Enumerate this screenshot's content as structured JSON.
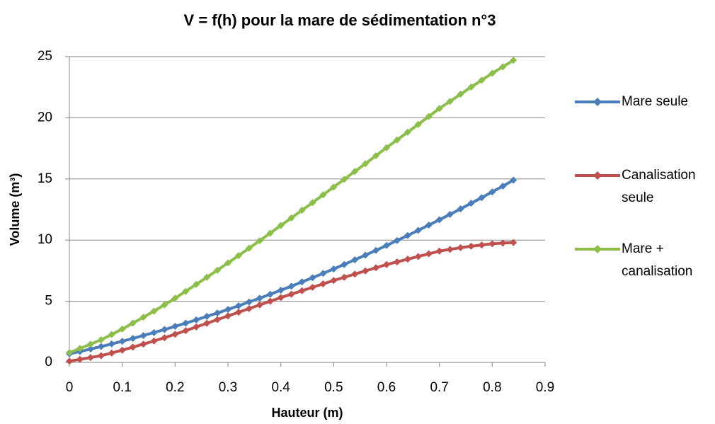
{
  "chart_data": {
    "type": "line",
    "title": "V = f(h) pour la mare de sédimentation n°3",
    "x_label": "Hauteur (m)",
    "y_label": "Volume (m³)",
    "x": [
      0,
      0.02,
      0.04,
      0.06,
      0.08,
      0.1,
      0.12,
      0.14,
      0.16,
      0.18,
      0.2,
      0.22,
      0.24,
      0.26,
      0.28,
      0.3,
      0.32,
      0.34,
      0.36,
      0.38,
      0.4,
      0.42,
      0.44,
      0.46,
      0.48,
      0.5,
      0.52,
      0.54,
      0.56,
      0.58,
      0.6,
      0.62,
      0.64,
      0.66,
      0.68,
      0.7,
      0.72,
      0.74,
      0.76,
      0.78,
      0.8,
      0.82,
      0.84
    ],
    "series": [
      {
        "name": "Mare seule",
        "color": "#4a7ebb",
        "values": [
          0.7,
          0.89,
          1.09,
          1.3,
          1.51,
          1.73,
          1.96,
          2.2,
          2.44,
          2.69,
          2.95,
          3.21,
          3.48,
          3.76,
          4.04,
          4.33,
          4.63,
          4.94,
          5.25,
          5.57,
          5.9,
          6.23,
          6.58,
          6.92,
          7.28,
          7.64,
          8.01,
          8.39,
          8.77,
          9.16,
          9.56,
          9.97,
          10.38,
          10.8,
          11.23,
          11.66,
          12.1,
          12.55,
          13.01,
          13.47,
          13.94,
          14.41,
          14.9
        ]
      },
      {
        "name": "Canalisation seule",
        "color": "#c0504d",
        "values": [
          0.1,
          0.25,
          0.4,
          0.55,
          0.77,
          1.0,
          1.25,
          1.5,
          1.75,
          2.02,
          2.3,
          2.6,
          2.9,
          3.2,
          3.5,
          3.8,
          4.1,
          4.4,
          4.7,
          5.0,
          5.3,
          5.58,
          5.86,
          6.14,
          6.42,
          6.7,
          6.96,
          7.22,
          7.48,
          7.74,
          8.0,
          8.22,
          8.44,
          8.66,
          8.88,
          9.1,
          9.24,
          9.38,
          9.5,
          9.6,
          9.7,
          9.76,
          9.8
        ]
      },
      {
        "name": "Mare + canalisation",
        "color": "#8cbf4a",
        "values": [
          0.8,
          1.14,
          1.49,
          1.85,
          2.28,
          2.73,
          3.21,
          3.7,
          4.19,
          4.71,
          5.25,
          5.81,
          6.38,
          6.96,
          7.54,
          8.13,
          8.73,
          9.34,
          9.95,
          10.57,
          11.2,
          11.81,
          12.44,
          13.06,
          13.7,
          14.34,
          14.97,
          15.61,
          16.25,
          16.9,
          17.56,
          18.19,
          18.82,
          19.46,
          20.11,
          20.76,
          21.34,
          21.93,
          22.51,
          23.07,
          23.64,
          24.17,
          24.7
        ]
      }
    ],
    "xlim": [
      0,
      0.9
    ],
    "xticks": [
      0,
      0.1,
      0.2,
      0.3,
      0.4,
      0.5,
      0.6,
      0.7,
      0.8,
      0.9
    ],
    "ylim": [
      0,
      25
    ],
    "yticks": [
      0,
      5,
      10,
      15,
      20,
      25
    ],
    "grid": true,
    "legend": "right",
    "markers": "diamond"
  }
}
